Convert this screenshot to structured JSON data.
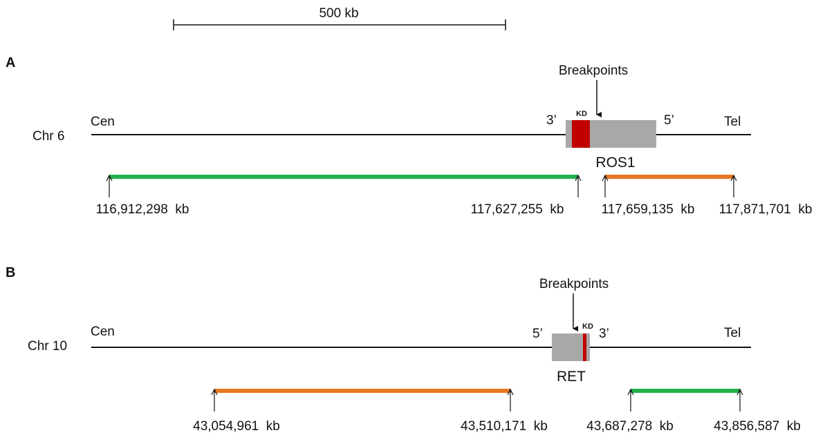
{
  "scale_bar": {
    "label": "500 kb"
  },
  "panels": [
    {
      "id": "A",
      "letter": "A",
      "chromosome": "Chr 6",
      "cen_label": "Cen",
      "tel_label": "Tel",
      "gene": "ROS1",
      "kd_label": "KD",
      "breakpoints_label": "Breakpoints",
      "left_end_label": "3’",
      "right_end_label": "5’",
      "coordinates": [
        "116,912,298  kb",
        "117,627,255  kb",
        "117,659,135  kb",
        "117,871,701  kb"
      ],
      "colors": {
        "segment_1": "#22b14c",
        "segment_2": "#e87722",
        "gene_box": "#a8a8a8",
        "kinase_domain": "#c00000"
      }
    },
    {
      "id": "B",
      "letter": "B",
      "chromosome": "Chr 10",
      "cen_label": "Cen",
      "tel_label": "Tel",
      "gene": "RET",
      "kd_label": "KD",
      "breakpoints_label": "Breakpoints",
      "left_end_label": "5’",
      "right_end_label": "3’",
      "coordinates": [
        "43,054,961  kb",
        "43,510,171  kb",
        "43,687,278  kb",
        "43,856,587  kb"
      ],
      "colors": {
        "segment_1": "#e87722",
        "segment_2": "#22b14c",
        "gene_box": "#a8a8a8",
        "kinase_domain": "#c00000"
      }
    }
  ]
}
